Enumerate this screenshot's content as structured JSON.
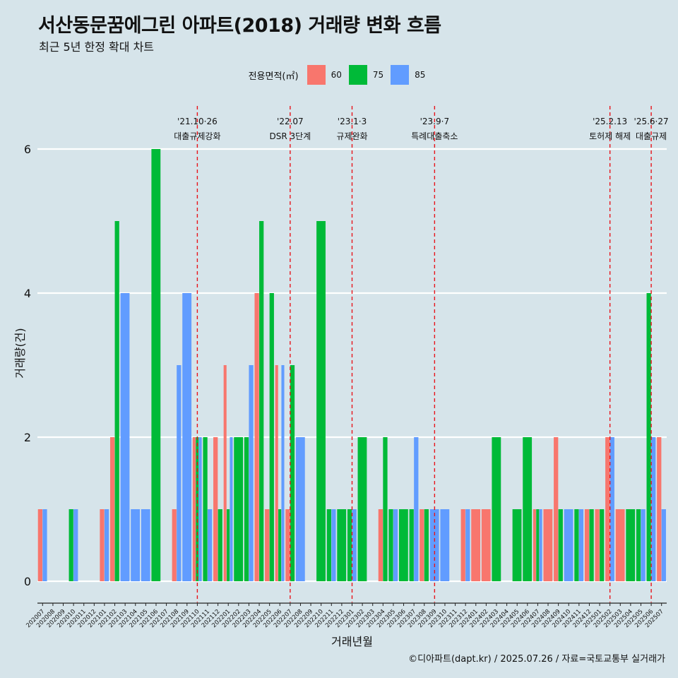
{
  "title": "서산동문꿈에그린 아파트(2018) 거래량 변화 흐름",
  "subtitle": "최근 5년 한정 확대 차트",
  "legend": {
    "title": "전용면적(㎡)",
    "items": [
      {
        "label": "60",
        "color": "#F8766D"
      },
      {
        "label": "75",
        "color": "#00BA38"
      },
      {
        "label": "85",
        "color": "#619CFF"
      }
    ]
  },
  "caption": "©디아파트(dapt.kr) / 2025.07.26 / 자료=국토교통부 실거래가",
  "chart_data": {
    "type": "bar",
    "title": "서산동문꿈에그린 아파트(2018) 거래량 변화 흐름",
    "subtitle": "최근 5년 한정 확대 차트",
    "xlabel": "거래년월",
    "ylabel": "거래량(건)",
    "ylim": [
      0,
      6.3
    ],
    "yticks": [
      0,
      2,
      4,
      6
    ],
    "grid": "horizontal",
    "legend_position": "top",
    "categories": [
      "202007",
      "202008",
      "202009",
      "202010",
      "202011",
      "202012",
      "202101",
      "202102",
      "202103",
      "202104",
      "202105",
      "202106",
      "202107",
      "202108",
      "202109",
      "202110",
      "202111",
      "202112",
      "202201",
      "202202",
      "202203",
      "202204",
      "202205",
      "202206",
      "202207",
      "202208",
      "202209",
      "202210",
      "202211",
      "202212",
      "202301",
      "202302",
      "202303",
      "202304",
      "202305",
      "202306",
      "202307",
      "202308",
      "202309",
      "202310",
      "202311",
      "202312",
      "202401",
      "202402",
      "202403",
      "202404",
      "202405",
      "202406",
      "202407",
      "202408",
      "202409",
      "202410",
      "202411",
      "202412",
      "202501",
      "202502",
      "202503",
      "202504",
      "202505",
      "202506",
      "202507"
    ],
    "series": [
      {
        "name": "60",
        "color": "#F8766D",
        "values": [
          1,
          0,
          0,
          0,
          0,
          0,
          1,
          2,
          0,
          0,
          0,
          0,
          0,
          1,
          0,
          2,
          0,
          2,
          3,
          0,
          0,
          4,
          1,
          3,
          1,
          0,
          0,
          0,
          0,
          0,
          0,
          0,
          0,
          1,
          0,
          0,
          0,
          1,
          0,
          0,
          0,
          1,
          1,
          1,
          0,
          0,
          0,
          0,
          1,
          1,
          2,
          0,
          0,
          1,
          1,
          2,
          1,
          0,
          0,
          0,
          2
        ]
      },
      {
        "name": "75",
        "color": "#00BA38",
        "values": [
          0,
          0,
          0,
          1,
          0,
          0,
          0,
          5,
          0,
          0,
          0,
          6,
          0,
          0,
          0,
          2,
          2,
          1,
          1,
          2,
          2,
          5,
          4,
          1,
          3,
          0,
          0,
          5,
          1,
          1,
          1,
          2,
          0,
          2,
          1,
          1,
          1,
          1,
          0,
          0,
          0,
          0,
          0,
          0,
          2,
          0,
          1,
          2,
          1,
          0,
          1,
          0,
          1,
          1,
          1,
          0,
          0,
          1,
          1,
          4,
          0
        ]
      },
      {
        "name": "85",
        "color": "#619CFF",
        "values": [
          1,
          0,
          0,
          1,
          0,
          0,
          1,
          0,
          4,
          1,
          1,
          0,
          0,
          3,
          4,
          2,
          1,
          0,
          2,
          0,
          3,
          0,
          0,
          3,
          0,
          2,
          0,
          0,
          1,
          0,
          1,
          0,
          0,
          0,
          1,
          0,
          2,
          0,
          1,
          1,
          0,
          1,
          0,
          0,
          0,
          0,
          0,
          0,
          1,
          0,
          0,
          1,
          1,
          0,
          0,
          2,
          0,
          0,
          1,
          2,
          1
        ]
      }
    ],
    "annotations": [
      {
        "at": "202110",
        "date": "'21.10·26",
        "label": "대출규제강화"
      },
      {
        "at": "202207",
        "date": "'22.07",
        "label": "DSR 3단계"
      },
      {
        "at": "202301",
        "date": "'23.1·3",
        "label": "규제완화"
      },
      {
        "at": "202309",
        "date": "'23.9·7",
        "label": "특례대출축소"
      },
      {
        "at": "202502",
        "date": "'25.2.13",
        "label": "토허제 해제"
      },
      {
        "at": "202506",
        "date": "'25.6·27",
        "label": "대출규제"
      }
    ]
  }
}
